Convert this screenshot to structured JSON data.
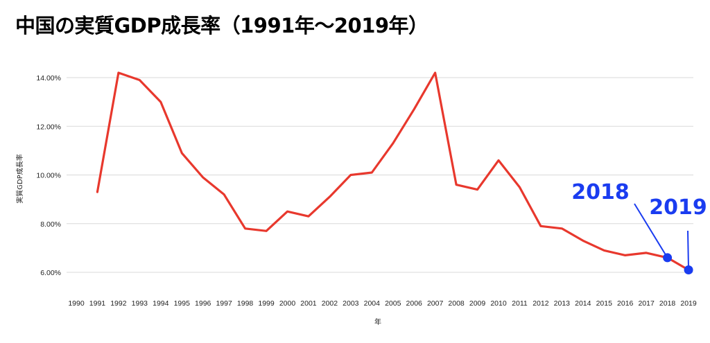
{
  "chart_data": {
    "type": "line",
    "title": "中国の実質GDP成長率（1991年〜2019年）",
    "xlabel": "年",
    "ylabel": "実質GDP成長率",
    "categories": [
      "1990",
      "1991",
      "1992",
      "1993",
      "1994",
      "1995",
      "1996",
      "1997",
      "1998",
      "1999",
      "2000",
      "2001",
      "2002",
      "2003",
      "2004",
      "2005",
      "2006",
      "2007",
      "2008",
      "2009",
      "2010",
      "2011",
      "2012",
      "2013",
      "2014",
      "2015",
      "2016",
      "2017",
      "2018",
      "2019"
    ],
    "series": [
      {
        "color": "#e8382d",
        "values": [
          null,
          9.3,
          14.2,
          13.9,
          13.0,
          10.9,
          9.9,
          9.2,
          7.8,
          7.7,
          8.5,
          8.3,
          9.1,
          10.0,
          10.1,
          11.3,
          12.7,
          14.2,
          9.6,
          9.4,
          10.6,
          9.5,
          7.9,
          7.8,
          7.3,
          6.9,
          6.7,
          6.8,
          6.6,
          6.1
        ]
      }
    ],
    "ylim": [
      5.6,
      14.6
    ],
    "yticks": [
      6,
      8,
      10,
      12,
      14
    ],
    "ytick_labels": [
      "6.00%",
      "8.00%",
      "10.00%",
      "12.00%",
      "14.00%"
    ],
    "grid": true,
    "legend": "none",
    "annotations": [
      {
        "text": "2018",
        "year": "2018",
        "color": "#1a3cf0"
      },
      {
        "text": "2019",
        "year": "2019",
        "color": "#1a3cf0"
      }
    ]
  }
}
